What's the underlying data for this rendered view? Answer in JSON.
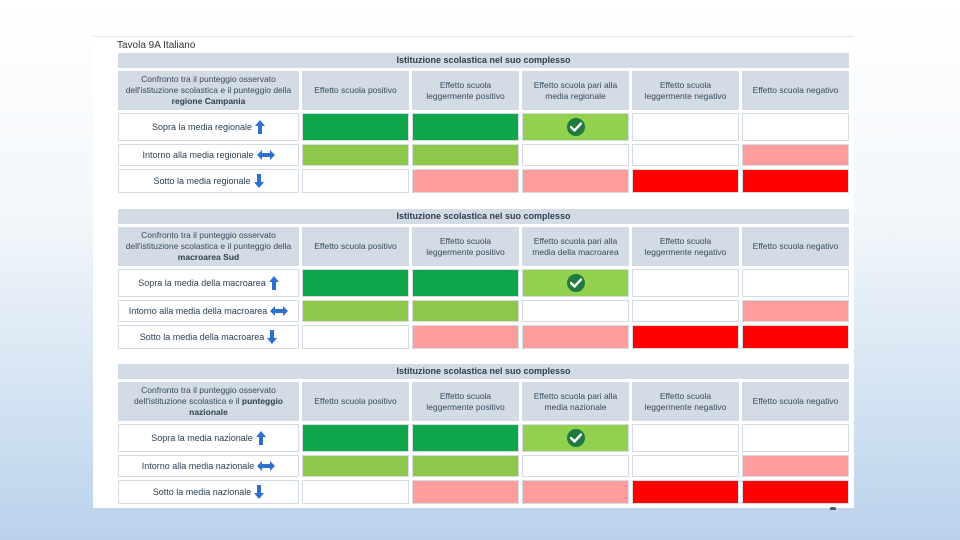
{
  "document": {
    "title": "Tavola 9A Italiano"
  },
  "tables": [
    {
      "header": "Istituzione scolastica nel suo complesso",
      "first_col": {
        "pre": "Confronto tra il punteggio osservato dell'istituzione scolastica e il punteggio della ",
        "bold": "regione Campania"
      },
      "columns": [
        "Effetto scuola positivo",
        "Effetto scuola leggermente positivo",
        "Effetto scuola pari alla media regionale",
        "Effetto scuola leggermente negativo",
        "Effetto scuola negativo"
      ],
      "rows": [
        "Sopra la media regionale",
        "Intorno alla media regionale",
        "Sotto la media regionale"
      ]
    },
    {
      "header": "Istituzione scolastica nel suo complesso",
      "first_col": {
        "pre": "Confronto tra il punteggio osservato dell'istituzione scolastica e il punteggio della ",
        "bold": "macroarea Sud"
      },
      "columns": [
        "Effetto scuola positivo",
        "Effetto scuola leggermente positivo",
        "Effetto scuola pari alla media della macroarea",
        "Effetto scuola leggermente negativo",
        "Effetto scuola negativo"
      ],
      "rows": [
        "Sopra la media della macroarea",
        "Intorno alla media della macroarea",
        "Sotto la media della macroarea"
      ]
    },
    {
      "header": "Istituzione scolastica nel suo complesso",
      "first_col": {
        "pre": "Confronto tra il punteggio osservato dell'istituzione scolastica e il ",
        "bold": "punteggio nazionale"
      },
      "columns": [
        "Effetto scuola positivo",
        "Effetto scuola leggermente positivo",
        "Effetto scuola pari alla media nazionale",
        "Effetto scuola leggermente negativo",
        "Effetto scuola negativo"
      ],
      "rows": [
        "Sopra la media nazionale",
        "Intorno alla media nazionale",
        "Sotto la media nazionale"
      ]
    }
  ],
  "legend_colors": {
    "dark_green": "#0fa64b",
    "light_green": "#8dc84a",
    "pink": "#ff9d9d",
    "red": "#ff0000",
    "header_bg": "#d3dce4"
  },
  "icons": {
    "up": "arrow-up-icon",
    "both": "arrow-left-right-icon",
    "down": "arrow-down-icon",
    "selected": "checkmark-icon"
  }
}
